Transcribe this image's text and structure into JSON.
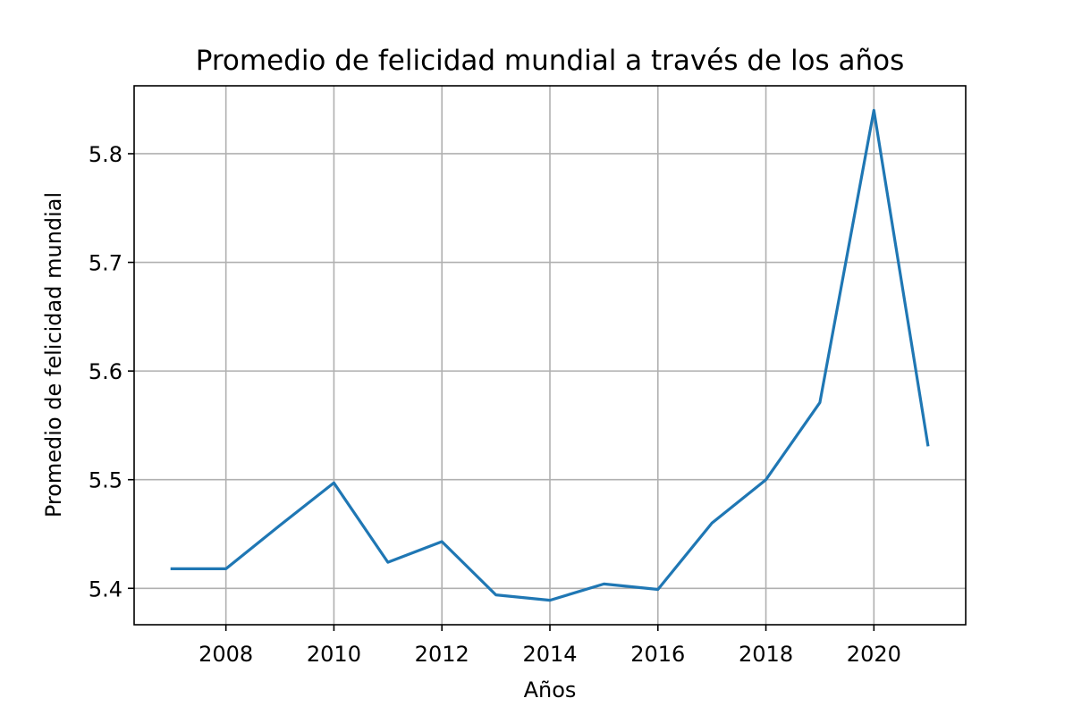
{
  "chart_data": {
    "type": "line",
    "title": "Promedio de felicidad mundial a través de los años",
    "xlabel": "Años",
    "ylabel": "Promedio de felicidad mundial",
    "x": [
      2007,
      2008,
      2009,
      2010,
      2011,
      2012,
      2013,
      2014,
      2015,
      2016,
      2017,
      2018,
      2019,
      2020,
      2021
    ],
    "series": [
      {
        "values": [
          5.418,
          5.418,
          5.458,
          5.497,
          5.424,
          5.443,
          5.394,
          5.389,
          5.404,
          5.399,
          5.46,
          5.5,
          5.571,
          5.84,
          5.532
        ],
        "color": "#1f77b4"
      }
    ],
    "xlim": [
      2006.3,
      2021.7
    ],
    "ylim": [
      5.3665,
      5.8625
    ],
    "xticks": [
      2008,
      2010,
      2012,
      2014,
      2016,
      2018,
      2020
    ],
    "xtick_labels": [
      "2008",
      "2010",
      "2012",
      "2014",
      "2016",
      "2018",
      "2020"
    ],
    "yticks": [
      5.4,
      5.5,
      5.6,
      5.7,
      5.8
    ],
    "ytick_labels": [
      "5.4",
      "5.5",
      "5.6",
      "5.7",
      "5.8"
    ],
    "grid": true,
    "legend": false
  }
}
